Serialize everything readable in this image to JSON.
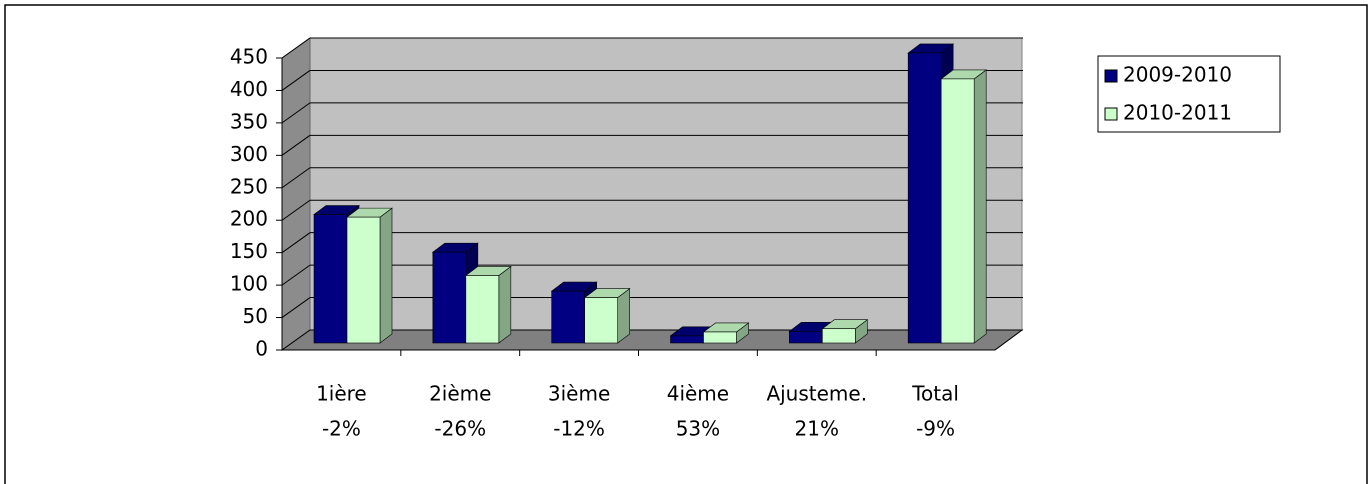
{
  "chart_data": {
    "type": "bar3d",
    "categories": [
      [
        "1ière",
        "-2%"
      ],
      [
        "2ième",
        "-26%"
      ],
      [
        "3ième",
        "-12%"
      ],
      [
        "4ième",
        "53%"
      ],
      [
        "Ajusteme.",
        "21%"
      ],
      [
        "Total",
        "-9%"
      ]
    ],
    "series": [
      {
        "name": "2009-2010",
        "color": "#000080",
        "values": [
          198,
          140,
          80,
          11,
          18,
          447
        ]
      },
      {
        "name": "2010-2011",
        "color": "#ccffcc",
        "values": [
          194,
          104,
          70,
          17,
          22,
          407
        ]
      }
    ],
    "ylim": [
      0,
      450
    ],
    "yticks": [
      0,
      50,
      100,
      150,
      200,
      250,
      300,
      350,
      400,
      450
    ],
    "grid": true,
    "legend": "right"
  }
}
